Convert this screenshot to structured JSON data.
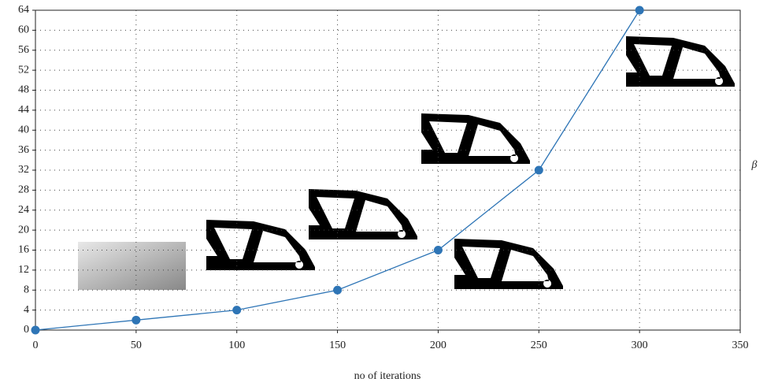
{
  "chart_data": {
    "type": "line",
    "x": [
      0,
      50,
      100,
      150,
      200,
      250,
      300
    ],
    "values": [
      0,
      2,
      4,
      8,
      16,
      32,
      64
    ],
    "color": "#2e75b6",
    "xlabel": "no of iterations",
    "ylabel": "β",
    "xlim": [
      0,
      350
    ],
    "xticks": [
      0,
      50,
      100,
      150,
      200,
      250,
      300,
      350
    ],
    "ylim": [
      0,
      64
    ],
    "yticks": [
      0,
      4,
      8,
      12,
      16,
      20,
      24,
      28,
      32,
      36,
      40,
      44,
      48,
      52,
      56,
      60,
      64
    ],
    "grid": true
  }
}
